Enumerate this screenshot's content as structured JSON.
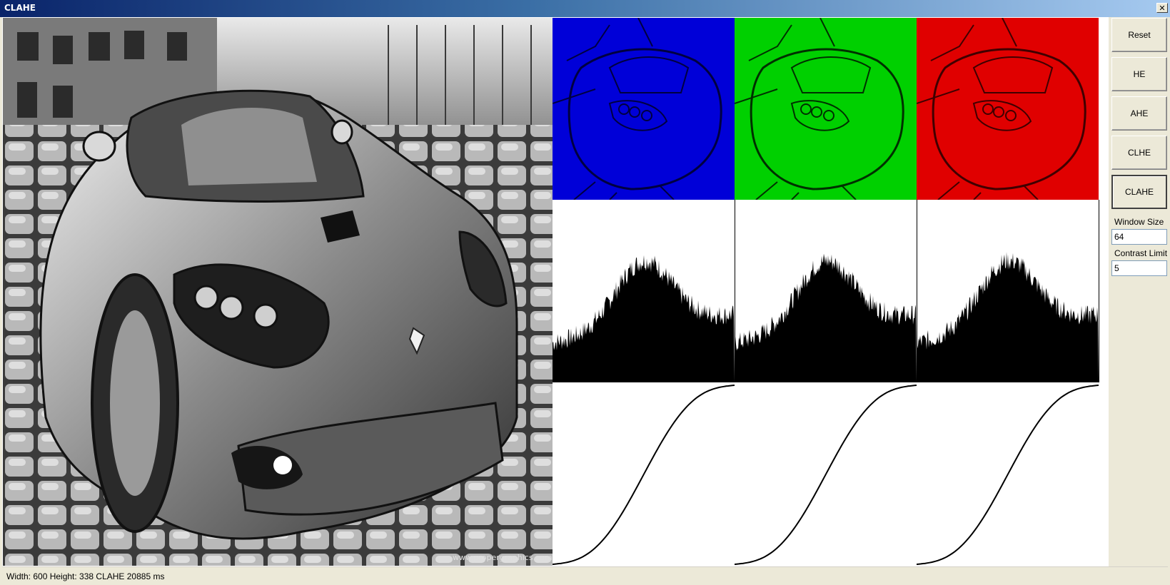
{
  "window": {
    "title": "CLAHE",
    "close_glyph": "✕"
  },
  "buttons": [
    {
      "name": "reset-button",
      "label": "Reset",
      "active": false
    },
    {
      "name": "he-button",
      "label": "HE",
      "active": false
    },
    {
      "name": "ahe-button",
      "label": "AHE",
      "active": false
    },
    {
      "name": "clhe-button",
      "label": "CLHE",
      "active": false
    },
    {
      "name": "clahe-button",
      "label": "CLAHE",
      "active": true
    }
  ],
  "params": {
    "window_size_label": "Window Size",
    "window_size_value": "64",
    "contrast_limit_label": "Contrast Limit",
    "contrast_limit_value": "5"
  },
  "channels": [
    {
      "name": "blue",
      "color": "#0000ff"
    },
    {
      "name": "green",
      "color": "#00ff00"
    },
    {
      "name": "red",
      "color": "#ff0000"
    }
  ],
  "status": {
    "text": "Width: 600 Height: 338 CLAHE 20885 ms"
  },
  "watermark": "www.propergraphics.com"
}
